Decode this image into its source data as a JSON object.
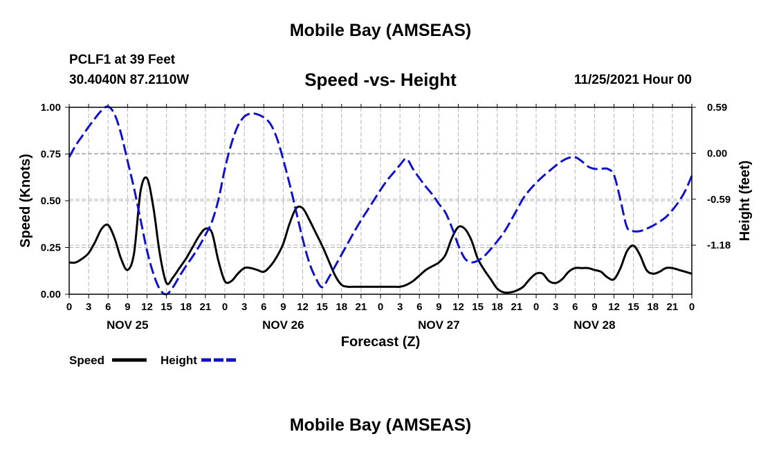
{
  "header": {
    "title": "Mobile Bay (AMSEAS)",
    "station": "PCLF1 at 39 Feet",
    "coordinates": "30.4040N  87.2110W",
    "chart_title": "Speed -vs- Height",
    "datetime": "11/25/2021 Hour 00"
  },
  "footer": {
    "title": "Mobile Bay (AMSEAS)"
  },
  "colors": {
    "speed": "#000000",
    "height": "#1010c8",
    "grid": "#b4b4b4"
  },
  "chart_data": {
    "type": "line",
    "title": "Speed -vs- Height",
    "xlabel": "Forecast (Z)",
    "ylabel_left": "Speed (Knots)",
    "ylabel_right": "Height (feet)",
    "x_range_hours": [
      0,
      96
    ],
    "x_tick_labels": [
      "0",
      "3",
      "6",
      "9",
      "12",
      "15",
      "18",
      "21",
      "0",
      "3",
      "6",
      "9",
      "12",
      "15",
      "18",
      "21",
      "0",
      "3",
      "6",
      "9",
      "12",
      "15",
      "18",
      "21",
      "0",
      "3",
      "6",
      "9",
      "12",
      "15",
      "18",
      "21",
      "0"
    ],
    "day_labels": [
      {
        "label": "NOV 25",
        "hour": 9
      },
      {
        "label": "NOV 26",
        "hour": 33
      },
      {
        "label": "NOV 27",
        "hour": 57
      },
      {
        "label": "NOV 28",
        "hour": 81
      }
    ],
    "ylim_left": [
      0,
      1
    ],
    "y_ticks_left": [
      "0.00",
      "0.25",
      "0.50",
      "0.75",
      "1.00"
    ],
    "ylim_right": [
      -1.81,
      0.59
    ],
    "y_ticks_right": [
      {
        "label": "-1.18",
        "value": -1.18
      },
      {
        "label": "-0.59",
        "value": -0.59
      },
      {
        "label": "0.00",
        "value": 0.0
      },
      {
        "label": "0.59",
        "value": 0.59
      }
    ],
    "legend": {
      "position": "bottom-left",
      "entries": [
        "Speed",
        "Height"
      ]
    },
    "series": [
      {
        "name": "Speed",
        "axis": "left",
        "style": "solid",
        "x": [
          0,
          1,
          2,
          3,
          4,
          5,
          6,
          7,
          8,
          9,
          10,
          11,
          12,
          13,
          14,
          15,
          16,
          17,
          18,
          19,
          20,
          21,
          22,
          23,
          24,
          25,
          26,
          27,
          28,
          29,
          30,
          31,
          32,
          33,
          34,
          35,
          36,
          37,
          38,
          39,
          40,
          41,
          42,
          43,
          44,
          45,
          46,
          47,
          48,
          49,
          50,
          51,
          52,
          53,
          54,
          55,
          56,
          57,
          58,
          59,
          60,
          61,
          62,
          63,
          64,
          65,
          66,
          67,
          68,
          69,
          70,
          71,
          72,
          73,
          74,
          75,
          76,
          77,
          78,
          79,
          80,
          81,
          82,
          83,
          84,
          85,
          86,
          87,
          88,
          89,
          90,
          91,
          92,
          93,
          94,
          95,
          96
        ],
        "values": [
          0.17,
          0.17,
          0.19,
          0.22,
          0.28,
          0.35,
          0.37,
          0.3,
          0.19,
          0.13,
          0.22,
          0.55,
          0.62,
          0.46,
          0.21,
          0.06,
          0.09,
          0.14,
          0.19,
          0.25,
          0.31,
          0.35,
          0.33,
          0.18,
          0.07,
          0.07,
          0.11,
          0.14,
          0.14,
          0.13,
          0.12,
          0.15,
          0.2,
          0.27,
          0.38,
          0.46,
          0.46,
          0.4,
          0.33,
          0.26,
          0.18,
          0.1,
          0.05,
          0.04,
          0.04,
          0.04,
          0.04,
          0.04,
          0.04,
          0.04,
          0.04,
          0.04,
          0.05,
          0.07,
          0.1,
          0.13,
          0.15,
          0.17,
          0.21,
          0.3,
          0.36,
          0.35,
          0.29,
          0.19,
          0.13,
          0.08,
          0.03,
          0.01,
          0.01,
          0.02,
          0.04,
          0.08,
          0.11,
          0.11,
          0.07,
          0.06,
          0.08,
          0.12,
          0.14,
          0.14,
          0.14,
          0.13,
          0.12,
          0.09,
          0.08,
          0.14,
          0.23,
          0.26,
          0.21,
          0.13,
          0.11,
          0.12,
          0.14,
          0.14,
          0.13,
          0.12,
          0.11
        ]
      },
      {
        "name": "Height",
        "axis": "right",
        "style": "dashed",
        "x": [
          0,
          1,
          2,
          3,
          4,
          5,
          6,
          7,
          8,
          9,
          10,
          11,
          12,
          13,
          14,
          15,
          16,
          17,
          18,
          19,
          20,
          21,
          22,
          23,
          24,
          25,
          26,
          27,
          28,
          29,
          30,
          31,
          32,
          33,
          34,
          35,
          36,
          37,
          38,
          39,
          40,
          41,
          42,
          43,
          44,
          45,
          46,
          47,
          48,
          49,
          50,
          51,
          52,
          53,
          54,
          55,
          56,
          57,
          58,
          59,
          60,
          61,
          62,
          63,
          64,
          65,
          66,
          67,
          68,
          69,
          70,
          71,
          72,
          73,
          74,
          75,
          76,
          77,
          78,
          79,
          80,
          81,
          82,
          83,
          84,
          85,
          86,
          87,
          88,
          89,
          90,
          91,
          92,
          93,
          94,
          95,
          96
        ],
        "values": [
          -0.05,
          0.1,
          0.22,
          0.34,
          0.45,
          0.55,
          0.6,
          0.5,
          0.25,
          -0.1,
          -0.45,
          -0.85,
          -1.25,
          -1.55,
          -1.75,
          -1.81,
          -1.72,
          -1.58,
          -1.45,
          -1.33,
          -1.2,
          -1.05,
          -0.88,
          -0.6,
          -0.2,
          0.12,
          0.35,
          0.47,
          0.51,
          0.5,
          0.46,
          0.38,
          0.2,
          -0.08,
          -0.4,
          -0.75,
          -1.1,
          -1.4,
          -1.6,
          -1.72,
          -1.6,
          -1.45,
          -1.3,
          -1.15,
          -1.0,
          -0.86,
          -0.73,
          -0.6,
          -0.47,
          -0.35,
          -0.25,
          -0.15,
          -0.07,
          -0.2,
          -0.32,
          -0.43,
          -0.53,
          -0.65,
          -0.76,
          -0.95,
          -1.18,
          -1.35,
          -1.4,
          -1.38,
          -1.32,
          -1.23,
          -1.13,
          -1.02,
          -0.88,
          -0.73,
          -0.58,
          -0.47,
          -0.38,
          -0.3,
          -0.23,
          -0.16,
          -0.1,
          -0.06,
          -0.05,
          -0.1,
          -0.17,
          -0.2,
          -0.2,
          -0.2,
          -0.28,
          -0.6,
          -0.95,
          -1.0,
          -1.0,
          -0.97,
          -0.93,
          -0.88,
          -0.82,
          -0.73,
          -0.62,
          -0.48,
          -0.29
        ]
      }
    ]
  }
}
